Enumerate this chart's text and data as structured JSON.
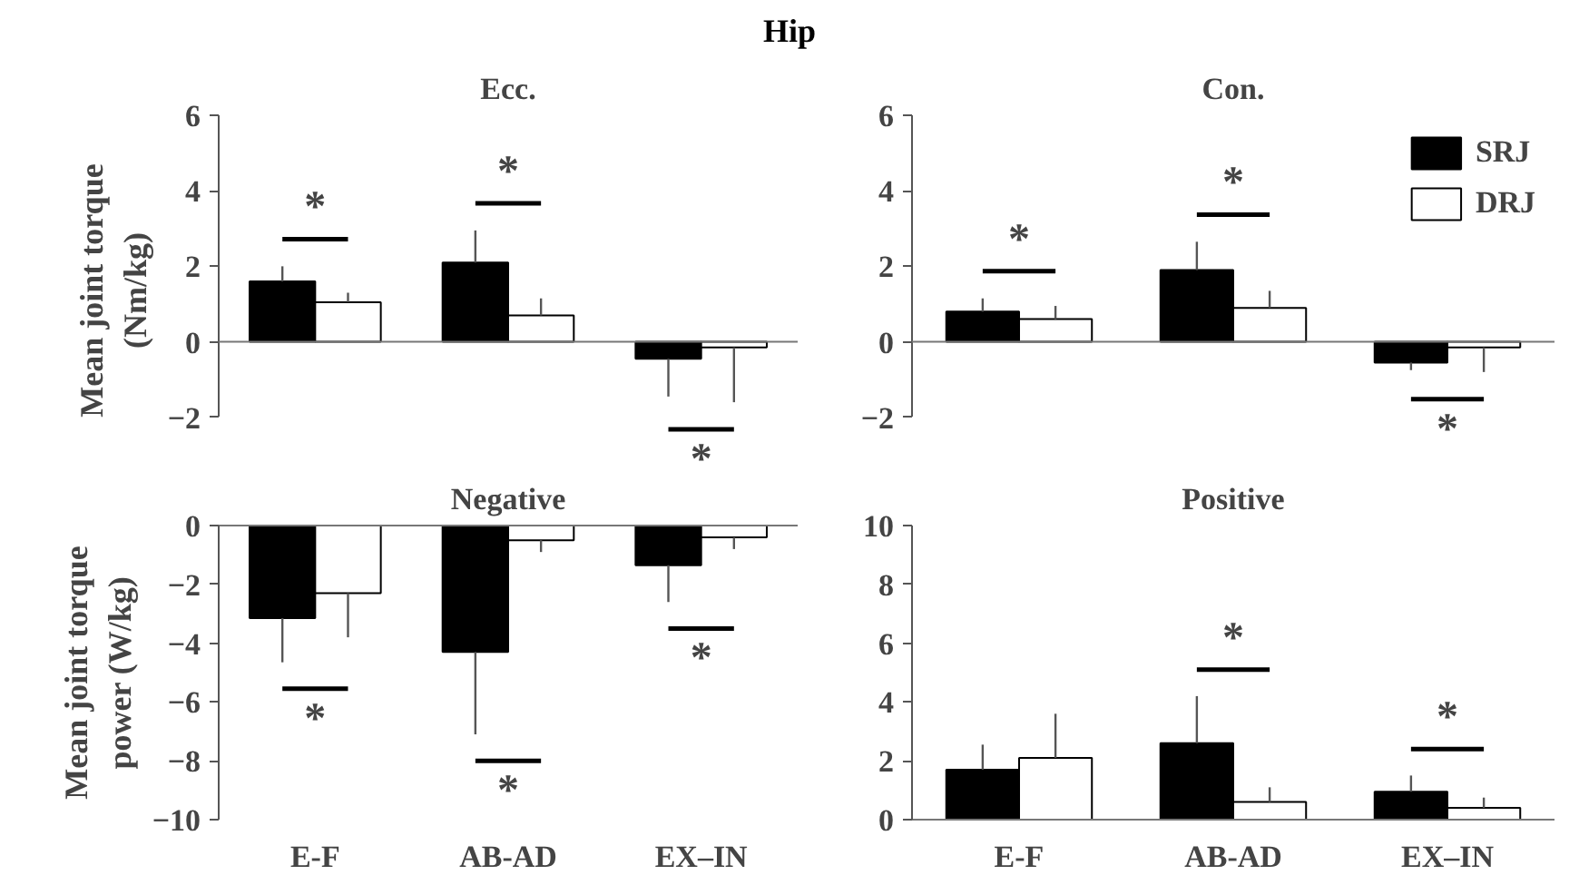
{
  "chart_data": [
    {
      "type": "other",
      "title": "Hip"
    },
    {
      "type": "bar",
      "title": "Ecc.",
      "ylabel": "Mean joint torque\n(Nm/kg)",
      "categories": [
        null,
        null,
        null
      ],
      "ylim": [
        -2,
        6
      ],
      "yticks": [
        -2,
        0,
        2,
        4,
        6
      ],
      "tick_labels": "y",
      "grid": false,
      "legend": false,
      "ref_lines": [
        {
          "axis": "y",
          "value": 0,
          "color": "#777777"
        }
      ],
      "annotations": [
        "*",
        "*",
        "*"
      ],
      "series": [
        {
          "color": "#000000",
          "values": [
            1.6,
            2.1,
            -0.45
          ],
          "errors": [
            [
              1.6,
              2.0
            ],
            [
              2.1,
              2.95
            ],
            [
              -1.45,
              -0.45
            ]
          ]
        },
        {
          "color": "#ffffff",
          "values": [
            1.05,
            0.7,
            -0.15
          ],
          "errors": [
            [
              1.05,
              1.3
            ],
            [
              0.7,
              1.15
            ],
            [
              -1.6,
              -0.15
            ]
          ]
        }
      ]
    },
    {
      "type": "bar",
      "title": "Con.",
      "categories": [
        null,
        null,
        null
      ],
      "ylim": [
        -2,
        6
      ],
      "yticks": [
        -2,
        0,
        2,
        4,
        6
      ],
      "tick_labels": "y",
      "grid": false,
      "legend": "top right",
      "ref_lines": [
        {
          "axis": "y",
          "value": 0,
          "color": "#777777"
        }
      ],
      "annotations": [
        "*",
        "*",
        "*"
      ],
      "series": [
        {
          "name": "SRJ",
          "color": "#000000",
          "values": [
            0.8,
            1.9,
            -0.55
          ],
          "errors": [
            [
              0.8,
              1.15
            ],
            [
              1.9,
              2.65
            ],
            [
              -0.75,
              -0.55
            ]
          ]
        },
        {
          "name": "DRJ",
          "color": "#ffffff",
          "values": [
            0.6,
            0.9,
            -0.15
          ],
          "errors": [
            [
              0.6,
              0.95
            ],
            [
              0.9,
              1.35
            ],
            [
              -0.8,
              -0.15
            ]
          ]
        }
      ]
    },
    {
      "type": "bar",
      "title": "Negative",
      "ylabel": "Mean joint torque\npower (W/kg)",
      "categories": [
        "E-F",
        "AB-AD",
        "EX–IN"
      ],
      "ylim": [
        -10,
        0
      ],
      "yticks": [
        -10,
        -8,
        -6,
        -4,
        -2,
        0
      ],
      "grid": false,
      "legend": false,
      "annotations": [
        "*",
        "*",
        "*"
      ],
      "series": [
        {
          "color": "#000000",
          "values": [
            -3.15,
            -4.3,
            -1.35
          ],
          "errors": [
            [
              -4.65,
              -3.15
            ],
            [
              -7.1,
              -4.3
            ],
            [
              -2.6,
              -1.35
            ]
          ]
        },
        {
          "color": "#ffffff",
          "values": [
            -2.3,
            -0.5,
            -0.4
          ],
          "errors": [
            [
              -3.8,
              -2.3
            ],
            [
              -0.9,
              -0.5
            ],
            [
              -0.8,
              -0.4
            ]
          ]
        }
      ]
    },
    {
      "type": "bar",
      "title": "Positive",
      "categories": [
        "E-F",
        "AB-AD",
        "EX–IN"
      ],
      "ylim": [
        0,
        10
      ],
      "yticks": [
        0,
        2,
        4,
        6,
        8,
        10
      ],
      "grid": false,
      "legend": false,
      "annotations": [
        "*",
        "*"
      ],
      "series": [
        {
          "color": "#000000",
          "values": [
            1.7,
            2.6,
            0.95
          ],
          "errors": [
            [
              1.7,
              2.55
            ],
            [
              2.6,
              4.2
            ],
            [
              0.95,
              1.5
            ]
          ]
        },
        {
          "color": "#ffffff",
          "values": [
            2.1,
            0.6,
            0.4
          ],
          "errors": [
            [
              2.1,
              3.6
            ],
            [
              0.6,
              1.1
            ],
            [
              0.4,
              0.75
            ]
          ]
        }
      ]
    }
  ]
}
